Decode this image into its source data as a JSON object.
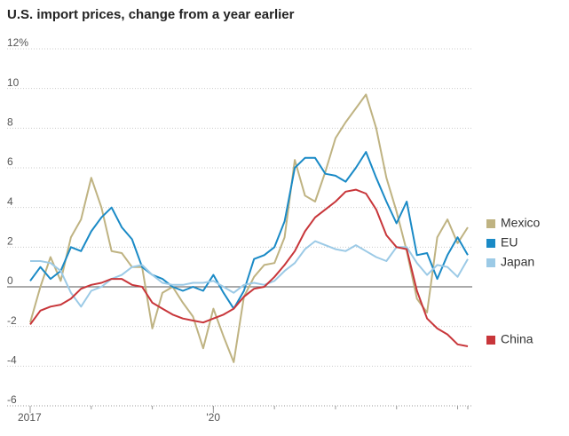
{
  "chart_data": {
    "type": "line",
    "title": "U.S. import prices, change from a year earlier",
    "categories": [
      "2017",
      null,
      null,
      null,
      null,
      null,
      null,
      null,
      null,
      null,
      null,
      null,
      null,
      null,
      null,
      null,
      null,
      null,
      "'20",
      null,
      null,
      null,
      null,
      null,
      null,
      null,
      null,
      null,
      null,
      null,
      null,
      null,
      null,
      null,
      null,
      null,
      null,
      null,
      null,
      null,
      null,
      null,
      null,
      null
    ],
    "series": [
      {
        "name": "Mexico",
        "color": "#bfb382",
        "values": [
          -1.8,
          0,
          1.5,
          0.3,
          2.5,
          3.4,
          5.5,
          4,
          1.8,
          1.7,
          1,
          1,
          -2.1,
          -0.3,
          0,
          -0.8,
          -1.5,
          -3.1,
          -1.1,
          -2.5,
          -3.8,
          -0.5,
          0.5,
          1.1,
          1.2,
          2.5,
          6.4,
          4.6,
          4.3,
          5.8,
          7.5,
          8.3,
          9,
          9.7,
          8,
          5.5,
          3.8,
          1.8,
          -0.6,
          -1.3,
          2.5,
          3.4,
          2.2,
          3
        ]
      },
      {
        "name": "EU",
        "color": "#1a8ac6",
        "values": [
          0.3,
          1,
          0.4,
          0.8,
          2,
          1.8,
          2.8,
          3.5,
          4,
          3,
          2.4,
          1,
          0.6,
          0.4,
          0,
          -0.2,
          0,
          -0.2,
          0.6,
          -0.3,
          -1.1,
          -0.2,
          1.4,
          1.6,
          2,
          3.3,
          6,
          6.5,
          6.5,
          5.7,
          5.6,
          5.3,
          6,
          6.8,
          5.5,
          4.3,
          3.2,
          4.3,
          1.6,
          1.7,
          0.4,
          1.6,
          2.5,
          1.6
        ]
      },
      {
        "name": "Japan",
        "color": "#9ccae6",
        "values": [
          1.3,
          1.3,
          1.2,
          0.8,
          -0.3,
          -1,
          -0.2,
          0,
          0.4,
          0.6,
          1,
          1.1,
          0.6,
          0.2,
          0.1,
          0.1,
          0.2,
          0.2,
          0.3,
          0,
          -0.3,
          0.1,
          0.2,
          0.1,
          0.3,
          0.8,
          1.2,
          1.9,
          2.3,
          2.1,
          1.9,
          1.8,
          2.1,
          1.8,
          1.5,
          1.3,
          2,
          2,
          1.2,
          0.6,
          1.1,
          1,
          0.5,
          1.4
        ]
      },
      {
        "name": "China",
        "color": "#c8363a",
        "values": [
          -1.9,
          -1.2,
          -1,
          -0.9,
          -0.6,
          -0.1,
          0.1,
          0.2,
          0.4,
          0.4,
          0.1,
          0,
          -0.8,
          -1.1,
          -1.4,
          -1.6,
          -1.7,
          -1.8,
          -1.6,
          -1.4,
          -1.1,
          -0.5,
          -0.1,
          0,
          0.5,
          1.1,
          1.8,
          2.8,
          3.5,
          3.9,
          4.3,
          4.8,
          4.9,
          4.7,
          3.9,
          2.6,
          2,
          1.9,
          -0.2,
          -1.6,
          -2.1,
          -2.4,
          -2.9,
          -3.0
        ]
      }
    ],
    "ylim": [
      -6,
      12
    ],
    "yticks": [
      -6,
      -4,
      -2,
      0,
      2,
      4,
      6,
      8,
      10,
      {
        "value": 12,
        "label": "12%"
      }
    ],
    "grid": true
  }
}
